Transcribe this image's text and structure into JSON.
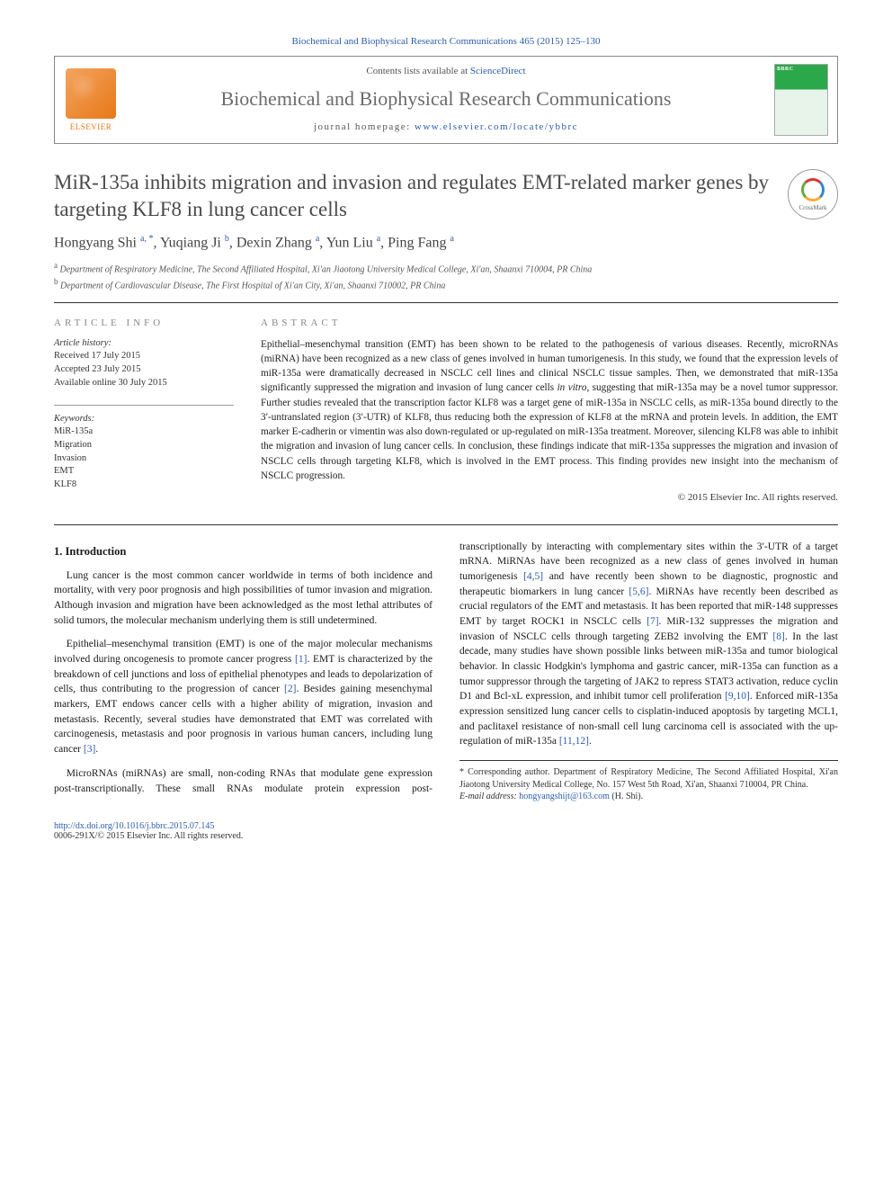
{
  "journal_ref": "Biochemical and Biophysical Research Communications 465 (2015) 125–130",
  "header": {
    "contents_prefix": "Contents lists available at ",
    "contents_link": "ScienceDirect",
    "journal_title": "Biochemical and Biophysical Research Communications",
    "homepage_prefix": "journal homepage: ",
    "homepage_link": "www.elsevier.com/locate/ybbrc",
    "publisher_name": "ELSEVIER",
    "cover_badge": "BBRC"
  },
  "crossmark_label": "CrossMark",
  "title": "MiR-135a inhibits migration and invasion and regulates EMT-related marker genes by targeting KLF8 in lung cancer cells",
  "authors_html": "Hongyang Shi <sup>a, *</sup>, Yuqiang Ji <sup>b</sup>, Dexin Zhang <sup>a</sup>, Yun Liu <sup>a</sup>, Ping Fang <sup>a</sup>",
  "affiliations": [
    {
      "sup": "a",
      "text": "Department of Respiratory Medicine, The Second Affiliated Hospital, Xi'an Jiaotong University Medical College, Xi'an, Shaanxi 710004, PR China"
    },
    {
      "sup": "b",
      "text": "Department of Cardiovascular Disease, The First Hospital of Xi'an City, Xi'an, Shaanxi 710002, PR China"
    }
  ],
  "article_info": {
    "heading": "ARTICLE INFO",
    "history_label": "Article history:",
    "received": "Received 17 July 2015",
    "accepted": "Accepted 23 July 2015",
    "online": "Available online 30 July 2015",
    "keywords_label": "Keywords:",
    "keywords": [
      "MiR-135a",
      "Migration",
      "Invasion",
      "EMT",
      "KLF8"
    ]
  },
  "abstract": {
    "heading": "ABSTRACT",
    "text": "Epithelial–mesenchymal transition (EMT) has been shown to be related to the pathogenesis of various diseases. Recently, microRNAs (miRNA) have been recognized as a new class of genes involved in human tumorigenesis. In this study, we found that the expression levels of miR-135a were dramatically decreased in NSCLC cell lines and clinical NSCLC tissue samples. Then, we demonstrated that miR-135a significantly suppressed the migration and invasion of lung cancer cells in vitro, suggesting that miR-135a may be a novel tumor suppressor. Further studies revealed that the transcription factor KLF8 was a target gene of miR-135a in NSCLC cells, as miR-135a bound directly to the 3′-untranslated region (3′-UTR) of KLF8, thus reducing both the expression of KLF8 at the mRNA and protein levels. In addition, the EMT marker E-cadherin or vimentin was also down-regulated or up-regulated on miR-135a treatment. Moreover, silencing KLF8 was able to inhibit the migration and invasion of lung cancer cells. In conclusion, these findings indicate that miR-135a suppresses the migration and invasion of NSCLC cells through targeting KLF8, which is involved in the EMT process. This finding provides new insight into the mechanism of NSCLC progression.",
    "copyright": "© 2015 Elsevier Inc. All rights reserved."
  },
  "body": {
    "intro_heading": "1. Introduction",
    "p1": "Lung cancer is the most common cancer worldwide in terms of both incidence and mortality, with very poor prognosis and high possibilities of tumor invasion and migration. Although invasion and migration have been acknowledged as the most lethal attributes of solid tumors, the molecular mechanism underlying them is still undetermined.",
    "p2_a": "Epithelial–mesenchymal transition (EMT) is one of the major molecular mechanisms involved during oncogenesis to promote cancer progress ",
    "p2_ref1": "[1]",
    "p2_b": ". EMT is characterized by the breakdown of cell junctions and loss of epithelial phenotypes and leads to depolarization of cells, thus contributing to the progression of cancer ",
    "p2_ref2": "[2]",
    "p2_c": ". Besides gaining mesenchymal markers, EMT endows cancer cells with a higher ability of migration, invasion and metastasis. Recently, several studies have demonstrated that EMT was correlated with carcinogenesis, metastasis and poor prognosis in various human cancers, including lung cancer ",
    "p2_ref3": "[3]",
    "p2_d": ".",
    "p3_a": "MicroRNAs (miRNAs) are small, non-coding RNAs that modulate gene expression post-transcriptionally. These small RNAs modulate protein expression post-transcriptionally by interacting with complementary sites within the 3′-UTR of a target mRNA. MiRNAs have been recognized as a new class of genes involved in human tumorigenesis ",
    "p3_ref1": "[4,5]",
    "p3_b": " and have recently been shown to be diagnostic, prognostic and therapeutic biomarkers in lung cancer ",
    "p3_ref2": "[5,6]",
    "p3_c": ". MiRNAs have recently been described as crucial regulators of the EMT and metastasis. It has been reported that miR-148 suppresses EMT by target ROCK1 in NSCLC cells ",
    "p3_ref3": "[7]",
    "p3_d": ". MiR-132 suppresses the migration and invasion of NSCLC cells through targeting ZEB2 involving the EMT ",
    "p3_ref4": "[8]",
    "p3_e": ". In the last decade, many studies have shown possible links between miR-135a and tumor biological behavior. In classic Hodgkin's lymphoma and gastric cancer, miR-135a can function as a tumor suppressor through the targeting of JAK2 to repress STAT3 activation, reduce cyclin D1 and Bcl-xL expression, and inhibit tumor cell proliferation ",
    "p3_ref5": "[9,10]",
    "p3_f": ". Enforced miR-135a expression sensitized lung cancer cells to cisplatin-induced apoptosis by targeting MCL1, and paclitaxel resistance of non-small cell lung carcinoma cell is associated with the up-regulation of miR-135a ",
    "p3_ref6": "[11,12]",
    "p3_g": "."
  },
  "footnote": {
    "corresponding": "* Corresponding author. Department of Respiratory Medicine, The Second Affiliated Hospital, Xi'an Jiaotong University Medical College, No. 157 West 5th Road, Xi'an, Shaanxi 710004, PR China.",
    "email_label": "E-mail address: ",
    "email": "hongyangshijt@163.com",
    "email_suffix": " (H. Shi)."
  },
  "footer": {
    "doi": "http://dx.doi.org/10.1016/j.bbrc.2015.07.145",
    "issn": "0006-291X/© 2015 Elsevier Inc. All rights reserved."
  },
  "colors": {
    "link": "#2d5caa",
    "publisher_orange": "#e77817",
    "cover_green": "#2aa84a",
    "muted_gray": "#6b6b6b"
  }
}
